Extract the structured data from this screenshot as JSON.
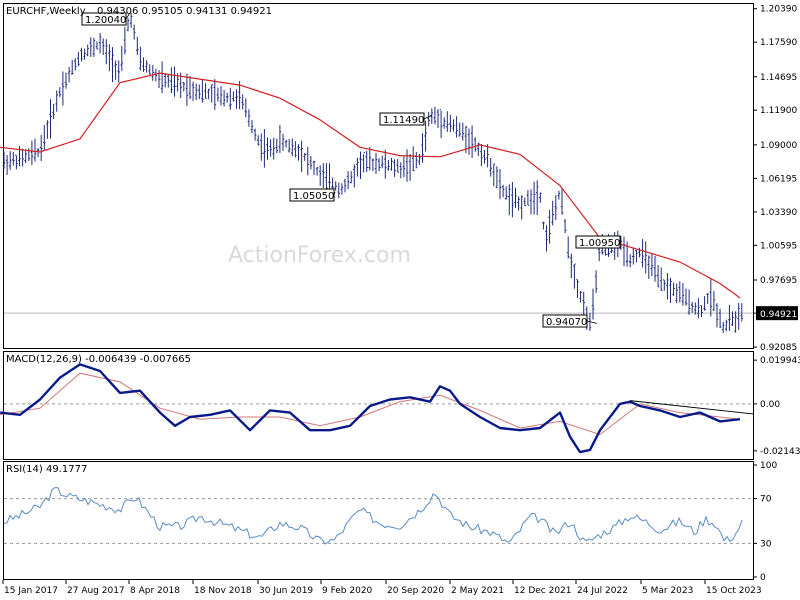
{
  "chart_data": [
    {
      "type": "candlestick",
      "title": "EURCHF,Weekly",
      "ohlc_label": "0.94306 0.95105 0.94131 0.94921",
      "watermark": "ActionForex.com",
      "current_price_label": "0.94921",
      "ylim": [
        0.9209,
        1.207
      ],
      "yticks": [
        "1.20390",
        "1.17590",
        "1.14695",
        "1.11900",
        "1.09000",
        "1.06195",
        "1.03390",
        "1.00595",
        "0.97695",
        "0.94921",
        "0.92085"
      ],
      "series": [
        {
          "name": "SMA",
          "color": "#d42020",
          "x": [
            0,
            40,
            80,
            120,
            160,
            200,
            240,
            280,
            320,
            360,
            400,
            440,
            480,
            520,
            560,
            600,
            640,
            680,
            720,
            740
          ],
          "values": [
            1.088,
            1.084,
            1.095,
            1.142,
            1.15,
            1.145,
            1.14,
            1.129,
            1.111,
            1.088,
            1.081,
            1.08,
            1.09,
            1.082,
            1.056,
            1.012,
            1.002,
            0.992,
            0.974,
            0.962
          ]
        },
        {
          "name": "price",
          "color": "#1f2a7a",
          "x": [
            0,
            20,
            40,
            60,
            80,
            100,
            120,
            130,
            140,
            160,
            180,
            200,
            220,
            240,
            260,
            270,
            280,
            300,
            320,
            340,
            350,
            360,
            380,
            400,
            420,
            430,
            450,
            470,
            490,
            500,
            510,
            520,
            540,
            545,
            560,
            570,
            580,
            590,
            595,
            600,
            610,
            620,
            630,
            640,
            650,
            660,
            680,
            700,
            710,
            720,
            725,
            730,
            735,
            740
          ],
          "values": [
            1.075,
            1.078,
            1.085,
            1.135,
            1.165,
            1.175,
            1.15,
            1.2,
            1.16,
            1.145,
            1.14,
            1.135,
            1.13,
            1.13,
            1.09,
            1.085,
            1.093,
            1.085,
            1.065,
            1.053,
            1.06,
            1.075,
            1.075,
            1.07,
            1.078,
            1.115,
            1.108,
            1.095,
            1.075,
            1.055,
            1.045,
            1.04,
            1.05,
            1.01,
            1.05,
            0.995,
            0.965,
            0.94,
            0.965,
            1.005,
            1.003,
            1.008,
            0.995,
            1.0,
            0.99,
            0.975,
            0.965,
            0.95,
            0.965,
            0.945,
            0.935,
            0.948,
            0.94,
            0.949
          ]
        }
      ],
      "annotations": [
        {
          "label": "1.20040",
          "x": 130,
          "value": 1.2004
        },
        {
          "label": "1.11490",
          "x": 432,
          "value": 1.1149
        },
        {
          "label": "1.05050",
          "x": 335,
          "value": 1.0505
        },
        {
          "label": "1.00950",
          "x": 622,
          "value": 1.0095
        },
        {
          "label": "0.94070",
          "x": 597,
          "value": 0.9407
        }
      ]
    },
    {
      "type": "line",
      "title": "MACD(12,26,9) -0.006439 -0.007665",
      "ylim": [
        -0.0247,
        0.0232
      ],
      "yticks": [
        "0.019943",
        "0.00",
        "-0.021434"
      ],
      "series": [
        {
          "name": "MACD",
          "color": "#0a1a8a",
          "x": [
            0,
            20,
            40,
            60,
            80,
            100,
            120,
            140,
            160,
            175,
            190,
            210,
            230,
            250,
            270,
            290,
            310,
            330,
            350,
            370,
            390,
            410,
            430,
            440,
            450,
            460,
            480,
            500,
            520,
            540,
            560,
            570,
            580,
            590,
            600,
            620,
            630,
            640,
            660,
            680,
            700,
            720,
            740
          ],
          "values": [
            -0.004,
            -0.005,
            0.002,
            0.012,
            0.018,
            0.015,
            0.005,
            0.006,
            -0.004,
            -0.01,
            -0.006,
            -0.005,
            -0.003,
            -0.012,
            -0.003,
            -0.004,
            -0.012,
            -0.012,
            -0.01,
            -0.001,
            0.002,
            0.003,
            0.001,
            0.008,
            0.006,
            0.0,
            -0.006,
            -0.011,
            -0.012,
            -0.011,
            -0.004,
            -0.015,
            -0.022,
            -0.021,
            -0.012,
            0.0,
            0.001,
            -0.001,
            -0.003,
            -0.006,
            -0.004,
            -0.008,
            -0.007
          ]
        },
        {
          "name": "Signal",
          "color": "#d07878",
          "x": [
            0,
            40,
            80,
            120,
            160,
            200,
            240,
            280,
            320,
            360,
            400,
            440,
            480,
            520,
            560,
            600,
            640,
            680,
            720,
            740
          ],
          "values": [
            -0.005,
            -0.002,
            0.014,
            0.01,
            -0.002,
            -0.007,
            -0.006,
            -0.006,
            -0.01,
            -0.006,
            0.001,
            0.004,
            -0.003,
            -0.011,
            -0.008,
            -0.014,
            0.0,
            -0.004,
            -0.006,
            -0.007
          ]
        }
      ],
      "trendline": {
        "x": [
          630,
          753
        ],
        "values": [
          0.0015,
          -0.0046
        ]
      }
    },
    {
      "type": "line",
      "title": "RSI(14) 49.1777",
      "ylim": [
        0,
        100
      ],
      "yticks": [
        "100",
        "70",
        "30",
        "0"
      ],
      "series": [
        {
          "name": "RSI",
          "color": "#5a8bc6",
          "x": [
            0,
            20,
            40,
            55,
            70,
            100,
            120,
            135,
            160,
            180,
            200,
            230,
            260,
            280,
            300,
            320,
            335,
            350,
            360,
            380,
            400,
            420,
            435,
            450,
            470,
            490,
            510,
            530,
            540,
            555,
            570,
            585,
            600,
            615,
            630,
            645,
            660,
            680,
            695,
            705,
            715,
            725,
            735,
            742
          ],
          "values": [
            48,
            55,
            63,
            78,
            72,
            65,
            60,
            72,
            45,
            45,
            54,
            45,
            35,
            48,
            44,
            32,
            33,
            50,
            60,
            48,
            46,
            60,
            76,
            55,
            45,
            40,
            30,
            54,
            52,
            38,
            50,
            30,
            38,
            45,
            55,
            50,
            42,
            50,
            40,
            52,
            48,
            32,
            38,
            49
          ]
        }
      ]
    }
  ],
  "x_axis_labels": [
    "15 Jan 2017",
    "27 Aug 2017",
    "8 Apr 2018",
    "18 Nov 2018",
    "30 Jun 2019",
    "9 Feb 2020",
    "20 Sep 2020",
    "2 May 2021",
    "12 Dec 2021",
    "24 Jul 2022",
    "5 Mar 2023",
    "15 Oct 2023"
  ]
}
